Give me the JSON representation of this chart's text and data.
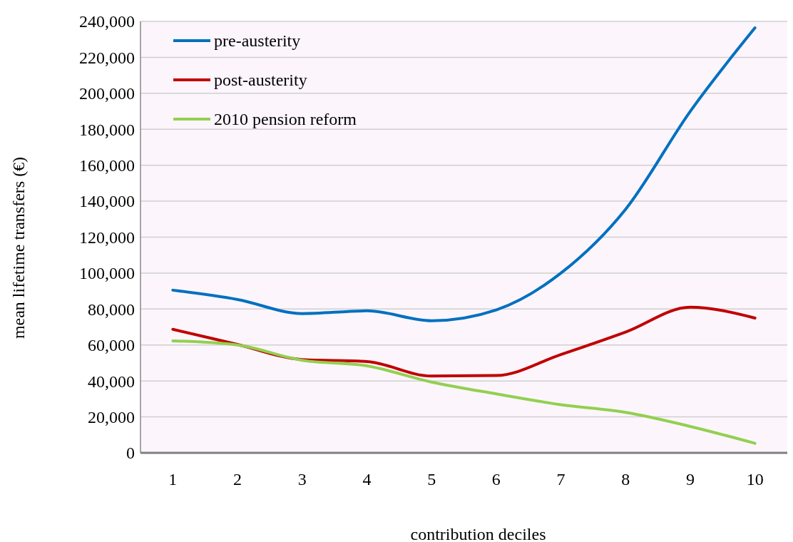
{
  "chart_data": {
    "type": "line",
    "xlabel": "contribution deciles",
    "ylabel": "mean lifetime transfers (€)",
    "categories": [
      "1",
      "2",
      "3",
      "4",
      "5",
      "6",
      "7",
      "8",
      "9",
      "10"
    ],
    "series": [
      {
        "name": "pre-austerity",
        "color": "#0070c0",
        "values": [
          90500,
          85300,
          77500,
          79000,
          73500,
          79500,
          100000,
          135500,
          190000,
          236400
        ]
      },
      {
        "name": "post-austerity",
        "color": "#c00000",
        "values": [
          68700,
          60300,
          51900,
          50800,
          42700,
          43000,
          54700,
          67200,
          81000,
          75000
        ]
      },
      {
        "name": "2010 pension reform",
        "color": "#92d050",
        "values": [
          62300,
          60000,
          51500,
          48400,
          39400,
          32800,
          26800,
          22500,
          14700,
          5300
        ]
      }
    ],
    "ylim": [
      0,
      240000
    ],
    "yticks": [
      0,
      {
        "value": 20000,
        "label": "20,000"
      },
      {
        "value": 40000,
        "label": "40,000"
      },
      {
        "value": 60000,
        "label": "60,000"
      },
      {
        "value": 80000,
        "label": "80,000"
      },
      {
        "value": 100000,
        "label": "100,000"
      },
      {
        "value": 120000,
        "label": "120,000"
      },
      {
        "value": 140000,
        "label": "140,000"
      },
      {
        "value": 160000,
        "label": "160,000"
      },
      {
        "value": 180000,
        "label": "180,000"
      },
      {
        "value": 200000,
        "label": "200,000"
      },
      {
        "value": 220000,
        "label": "220,000"
      },
      {
        "value": 240000,
        "label": "240,000"
      }
    ],
    "grid": "y",
    "legend": "top left",
    "marker": "none",
    "line_style": "solid"
  }
}
